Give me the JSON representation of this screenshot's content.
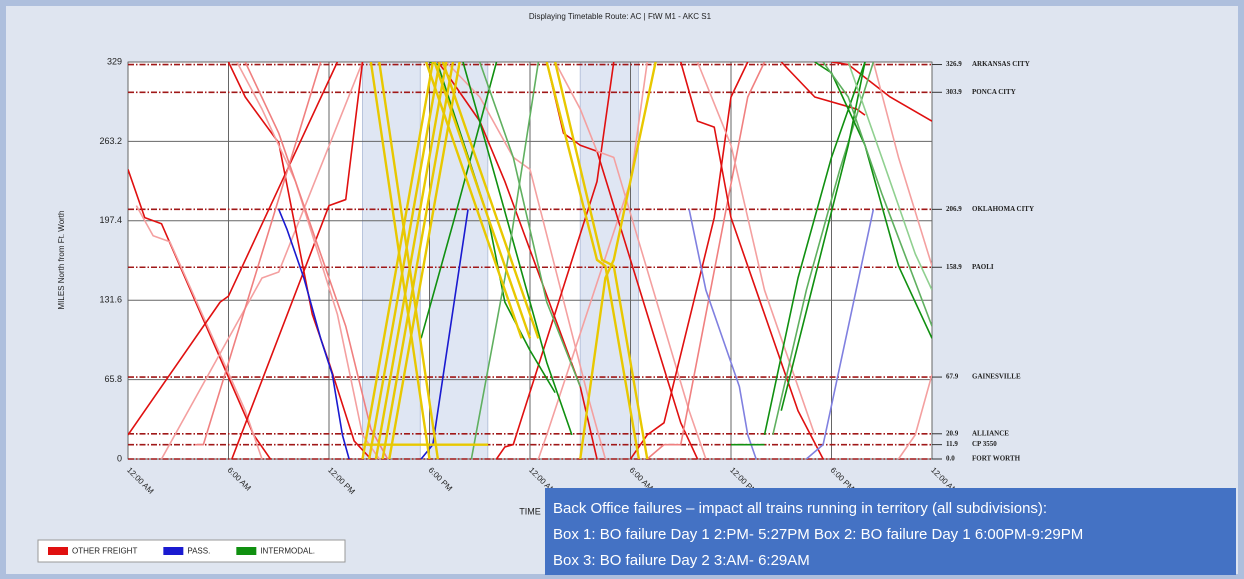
{
  "chart_data": {
    "type": "stringline",
    "title": "Displaying Timetable Route: AC | FtW M1 - AKC S1",
    "y_label": "MILES North from Ft. Worth",
    "x_label": "TIME",
    "xlim": [
      0,
      48
    ],
    "ylim": [
      0,
      329
    ],
    "yticks": [
      0,
      65.8,
      131.6,
      197.4,
      263.2,
      329
    ],
    "xticks": [
      {
        "value": 0,
        "label": "12:00 AM"
      },
      {
        "value": 6,
        "label": "6:00 AM"
      },
      {
        "value": 12,
        "label": "12:00 PM"
      },
      {
        "value": 18,
        "label": "6:00 PM"
      },
      {
        "value": 24,
        "label": "12:00 AM"
      },
      {
        "value": 30,
        "label": "6:00 AM"
      },
      {
        "value": 36,
        "label": "12:00 PM"
      },
      {
        "value": 42,
        "label": "6:00 PM"
      },
      {
        "value": 48,
        "label": "12:00 AM"
      }
    ],
    "grid": true,
    "stations": [
      {
        "value": 326.9,
        "label": "326.9",
        "name": "ARKANSAS CITY"
      },
      {
        "value": 303.9,
        "label": "303.9",
        "name": "PONCA CITY"
      },
      {
        "value": 206.9,
        "label": "206.9",
        "name": "OKLAHOMA CITY"
      },
      {
        "value": 158.9,
        "label": "158.9",
        "name": "PAOLI"
      },
      {
        "value": 67.9,
        "label": "67.9",
        "name": "GAINESVILLE"
      },
      {
        "value": 20.9,
        "label": "20.9",
        "name": "ALLIANCE"
      },
      {
        "value": 11.9,
        "label": "11.9",
        "name": "CP 3550"
      },
      {
        "value": 0,
        "label": "0.0",
        "name": "FORT WORTH"
      }
    ],
    "highlight_boxes": [
      {
        "start": 14,
        "end": 17.45
      },
      {
        "start": 18,
        "end": 21.48
      },
      {
        "start": 27,
        "end": 30.48
      }
    ],
    "series": [
      {
        "name": "OTHER FREIGHT",
        "color": "#e01010",
        "trains": [
          {
            "x": [
              0,
              1,
              2,
              7.5,
              8.5
            ],
            "y": [
              240,
              200,
              195,
              20,
              0
            ]
          },
          {
            "x": [
              0.5,
              1.5,
              2.5,
              7,
              8
            ],
            "y": [
              210,
              185,
              180,
              40,
              0
            ],
            "color": "#f4a0a0"
          },
          {
            "x": [
              0,
              5.5,
              6,
              12.5
            ],
            "y": [
              20,
              130,
              135,
              329
            ]
          },
          {
            "x": [
              2,
              8,
              9,
              14
            ],
            "y": [
              0,
              150,
              155,
              329
            ],
            "color": "#f4a0a0"
          },
          {
            "x": [
              6.2,
              12,
              13,
              14
            ],
            "y": [
              0,
              210,
              215,
              329
            ]
          },
          {
            "x": [
              6,
              7,
              9,
              11,
              12,
              13.5,
              14.5
            ],
            "y": [
              329,
              300,
              262,
              120,
              80,
              15,
              0
            ]
          },
          {
            "x": [
              6.5,
              8,
              10,
              12.5,
              14,
              15
            ],
            "y": [
              329,
              290,
              230,
              120,
              20,
              0
            ],
            "color": "#f4a0a0"
          },
          {
            "x": [
              7,
              9,
              13,
              14.5,
              15.5
            ],
            "y": [
              329,
              270,
              110,
              25,
              0
            ],
            "color": "#f08080"
          },
          {
            "x": [
              4,
              4.5,
              11.5
            ],
            "y": [
              11.9,
              11.9,
              329
            ],
            "color": "#f08080"
          },
          {
            "x": [
              18.5,
              19,
              21,
              22.5,
              27,
              28
            ],
            "y": [
              329,
              320,
              280,
              230,
              60,
              0
            ]
          },
          {
            "x": [
              19,
              21,
              23,
              24,
              27.5,
              28.5
            ],
            "y": [
              329,
              300,
              250,
              240,
              50,
              0
            ],
            "color": "#f4a0a0"
          },
          {
            "x": [
              22,
              22.5,
              23,
              28,
              29
            ],
            "y": [
              0,
              10,
              11.9,
              230,
              329
            ]
          },
          {
            "x": [
              24.5,
              25,
              30,
              31
            ],
            "y": [
              0,
              20,
              230,
              329
            ],
            "color": "#f4a0a0"
          },
          {
            "x": [
              25,
              26,
              27,
              28,
              33,
              34
            ],
            "y": [
              329,
              270,
              260,
              255,
              30,
              0
            ]
          },
          {
            "x": [
              25.5,
              27,
              28,
              29,
              33.5,
              34.5
            ],
            "y": [
              329,
              290,
              255,
              250,
              40,
              0
            ],
            "color": "#f4a0a0"
          },
          {
            "x": [
              30,
              31,
              32,
              35,
              36,
              37
            ],
            "y": [
              0,
              20,
              30,
              200,
              300,
              329
            ]
          },
          {
            "x": [
              31,
              32,
              33,
              37,
              38
            ],
            "y": [
              0,
              11.9,
              11.9,
              300,
              329
            ],
            "color": "#f08080"
          },
          {
            "x": [
              33,
              34,
              35,
              36,
              40,
              41.5
            ],
            "y": [
              329,
              280,
              275,
              200,
              40,
              0
            ]
          },
          {
            "x": [
              34,
              36,
              38,
              40,
              41
            ],
            "y": [
              329,
              260,
              140,
              60,
              20
            ],
            "color": "#f4a0a0"
          },
          {
            "x": [
              42,
              43,
              45.5,
              48
            ],
            "y": [
              329,
              326.9,
              300,
              280
            ]
          },
          {
            "x": [
              46,
              47,
              48
            ],
            "y": [
              0,
              20,
              70
            ],
            "color": "#f4a0a0"
          },
          {
            "x": [
              44.5,
              46,
              48
            ],
            "y": [
              329,
              250,
              160
            ],
            "color": "#f4a0a0"
          },
          {
            "x": [
              39,
              41,
              43.5,
              44
            ],
            "y": [
              329,
              300,
              290,
              285
            ]
          }
        ]
      },
      {
        "name": "PASS.",
        "color": "#1a1ad0",
        "trains": [
          {
            "x": [
              9,
              9.5,
              10.5,
              11.5,
              12.2,
              12.8,
              13.2
            ],
            "y": [
              206.9,
              190,
              150,
              100,
              70,
              20,
              0
            ]
          },
          {
            "x": [
              17.5,
              18.2,
              20.3
            ],
            "y": [
              0,
              11.9,
              206.9
            ]
          },
          {
            "x": [
              33.5,
              34.5,
              35.5,
              36.5,
              37,
              37.5
            ],
            "y": [
              206.9,
              140,
              100,
              60,
              20,
              0
            ],
            "color": "#8080e0"
          },
          {
            "x": [
              40.5,
              41.5,
              44.5
            ],
            "y": [
              0,
              11.9,
              206.9
            ],
            "color": "#8080e0"
          }
        ]
      },
      {
        "name": "INTERMODAL.",
        "color": "#109010",
        "trains": [
          {
            "x": [
              17.5,
              19.5,
              22
            ],
            "y": [
              100,
              200,
              329
            ]
          },
          {
            "x": [
              18,
              18.5,
              21.5,
              22.5,
              24,
              25.5
            ],
            "y": [
              329,
              326.9,
              200,
              130,
              90,
              55
            ]
          },
          {
            "x": [
              20,
              22,
              24,
              25,
              26.5
            ],
            "y": [
              329,
              230,
              130,
              80,
              20
            ]
          },
          {
            "x": [
              21,
              23,
              25,
              27
            ],
            "y": [
              329,
              250,
              130,
              60
            ],
            "color": "#60b060"
          },
          {
            "x": [
              20.5,
              22.5,
              24.5
            ],
            "y": [
              0,
              150,
              329
            ],
            "color": "#60b060"
          },
          {
            "x": [
              36,
              37,
              38
            ],
            "y": [
              11.9,
              11.9,
              11.9
            ]
          },
          {
            "x": [
              38,
              40,
              42,
              44
            ],
            "y": [
              20,
              150,
              250,
              329
            ]
          },
          {
            "x": [
              38.5,
              40.5,
              42.5,
              44.5
            ],
            "y": [
              20,
              140,
              240,
              329
            ],
            "color": "#60b060"
          },
          {
            "x": [
              39,
              41,
              43,
              44
            ],
            "y": [
              40,
              150,
              260,
              329
            ]
          },
          {
            "x": [
              41,
              42,
              44,
              46,
              48
            ],
            "y": [
              329,
              320,
              260,
              160,
              100
            ]
          },
          {
            "x": [
              41.5,
              43,
              45,
              48
            ],
            "y": [
              329,
              300,
              220,
              110
            ],
            "color": "#60b060"
          },
          {
            "x": [
              43,
              45,
              47,
              48
            ],
            "y": [
              329,
              250,
              170,
              140
            ],
            "color": "#90d090"
          }
        ]
      },
      {
        "color": "#e8c800",
        "trains": [
          {
            "x": [
              14,
              18.2
            ],
            "y": [
              0,
              329
            ]
          },
          {
            "x": [
              14.4,
              18.6
            ],
            "y": [
              0,
              329
            ]
          },
          {
            "x": [
              14.8,
              19
            ],
            "y": [
              0,
              329
            ]
          },
          {
            "x": [
              15.2,
              19.4
            ],
            "y": [
              0,
              329
            ]
          },
          {
            "x": [
              15.6,
              19.8
            ],
            "y": [
              0,
              329
            ]
          },
          {
            "x": [
              14.5,
              18
            ],
            "y": [
              329,
              0
            ]
          },
          {
            "x": [
              15,
              18.5
            ],
            "y": [
              329,
              0
            ]
          },
          {
            "x": [
              17.8,
              21,
              23.5
            ],
            "y": [
              329,
              200,
              100
            ]
          },
          {
            "x": [
              18.3,
              21.5,
              24
            ],
            "y": [
              329,
              200,
              100
            ]
          },
          {
            "x": [
              18.8,
              22,
              24.5
            ],
            "y": [
              329,
              200,
              100
            ]
          },
          {
            "x": [
              25,
              28,
              28.5,
              30.5
            ],
            "y": [
              329,
              165,
              160,
              0
            ]
          },
          {
            "x": [
              25.5,
              28.3,
              29,
              31
            ],
            "y": [
              329,
              165,
              160,
              0
            ]
          },
          {
            "x": [
              27,
              28.5,
              29,
              31.5
            ],
            "y": [
              0,
              150,
              165,
              329
            ]
          },
          {
            "x": [
              14,
              21.5
            ],
            "y": [
              11.9,
              11.9
            ]
          }
        ]
      }
    ],
    "annotation": [
      "Back Office failures – impact all trains running in territory (all subdivisions):",
      "Box 1: BO failure Day 1 2:PM- 5:27PM  Box 2: BO failure Day 1 6:00PM-9:29PM",
      "Box 3: BO failure Day 2 3:AM- 6:29AM"
    ]
  }
}
